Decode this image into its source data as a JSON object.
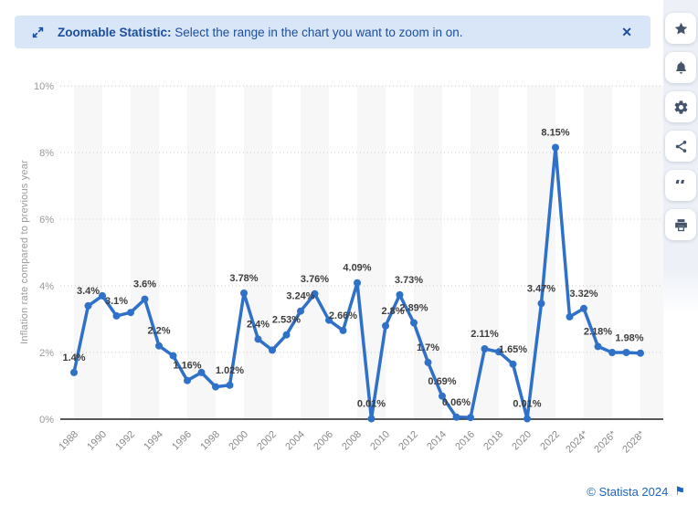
{
  "banner": {
    "title_bold": "Zoomable Statistic:",
    "title_rest": " Select the range in the chart you want to zoom in on.",
    "close_label": "✕",
    "bg_color": "#d9e6f7",
    "text_color": "#1b4fa0"
  },
  "toolbar": {
    "items": [
      {
        "name": "favorite",
        "icon": "star-icon"
      },
      {
        "name": "notifications",
        "icon": "bell-icon"
      },
      {
        "name": "settings",
        "icon": "gear-icon"
      },
      {
        "name": "share",
        "icon": "share-icon"
      },
      {
        "name": "cite",
        "icon": "quote-icon"
      },
      {
        "name": "print",
        "icon": "printer-icon"
      }
    ]
  },
  "footer": {
    "credit": "© Statista 2024",
    "flag_icon": "⚑"
  },
  "chart_data": {
    "type": "line",
    "ylabel": "Inflation rate compared to previous year",
    "xlabel": "",
    "ylim": [
      0,
      10
    ],
    "ytick_labels": [
      "0%",
      "2%",
      "4%",
      "6%",
      "8%",
      "10%"
    ],
    "xtick_labels": [
      "1988",
      "1990",
      "1992",
      "1994",
      "1996",
      "1998",
      "2000",
      "2002",
      "2004",
      "2006",
      "2008",
      "2010",
      "2012",
      "2014",
      "2016",
      "2018",
      "2020",
      "2022",
      "2024*",
      "2026*",
      "2028*"
    ],
    "years": [
      1988,
      1989,
      1990,
      1991,
      1992,
      1993,
      1994,
      1995,
      1996,
      1997,
      1998,
      1999,
      2000,
      2001,
      2002,
      2003,
      2004,
      2005,
      2006,
      2007,
      2008,
      2009,
      2010,
      2011,
      2012,
      2013,
      2014,
      2015,
      2016,
      2017,
      2018,
      2019,
      2020,
      2021,
      2022,
      2023,
      2024,
      2025,
      2026,
      2027,
      2028
    ],
    "values": [
      1.4,
      3.4,
      3.7,
      3.1,
      3.2,
      3.6,
      2.2,
      1.9,
      1.16,
      1.4,
      0.97,
      1.02,
      3.78,
      2.4,
      2.07,
      2.53,
      3.24,
      3.76,
      2.97,
      2.66,
      4.09,
      0.01,
      2.8,
      3.73,
      2.89,
      1.7,
      0.69,
      0.06,
      0.05,
      2.11,
      2.02,
      1.65,
      0.01,
      3.47,
      8.15,
      3.07,
      3.32,
      2.18,
      2.0,
      2.0,
      1.98
    ],
    "point_labels": [
      "1.4%",
      "3.4%",
      null,
      "3.1%",
      null,
      "3.6%",
      "2.2%",
      null,
      "1.16%",
      null,
      null,
      "1.02%",
      "3.78%",
      "2.4%",
      null,
      "2.53%",
      "3.24%",
      "3.76%",
      null,
      "2.66%",
      "4.09%",
      "0.01%",
      "2.8%",
      "3.73%",
      "2.89%",
      "1.7%",
      "0.69%",
      "0.06%",
      null,
      "2.11%",
      null,
      "1.65%",
      "0.01%",
      "3.47%",
      "8.15%",
      null,
      "3.32%",
      "2.18%",
      null,
      null,
      "1.98%"
    ],
    "label_offsets": {
      "2010": 8,
      "2011": 10,
      "2028": -12
    },
    "line_color": "#2f70c8",
    "band_color": "#f7f7f8",
    "grid": "dotted horizontal",
    "legend": "none"
  }
}
